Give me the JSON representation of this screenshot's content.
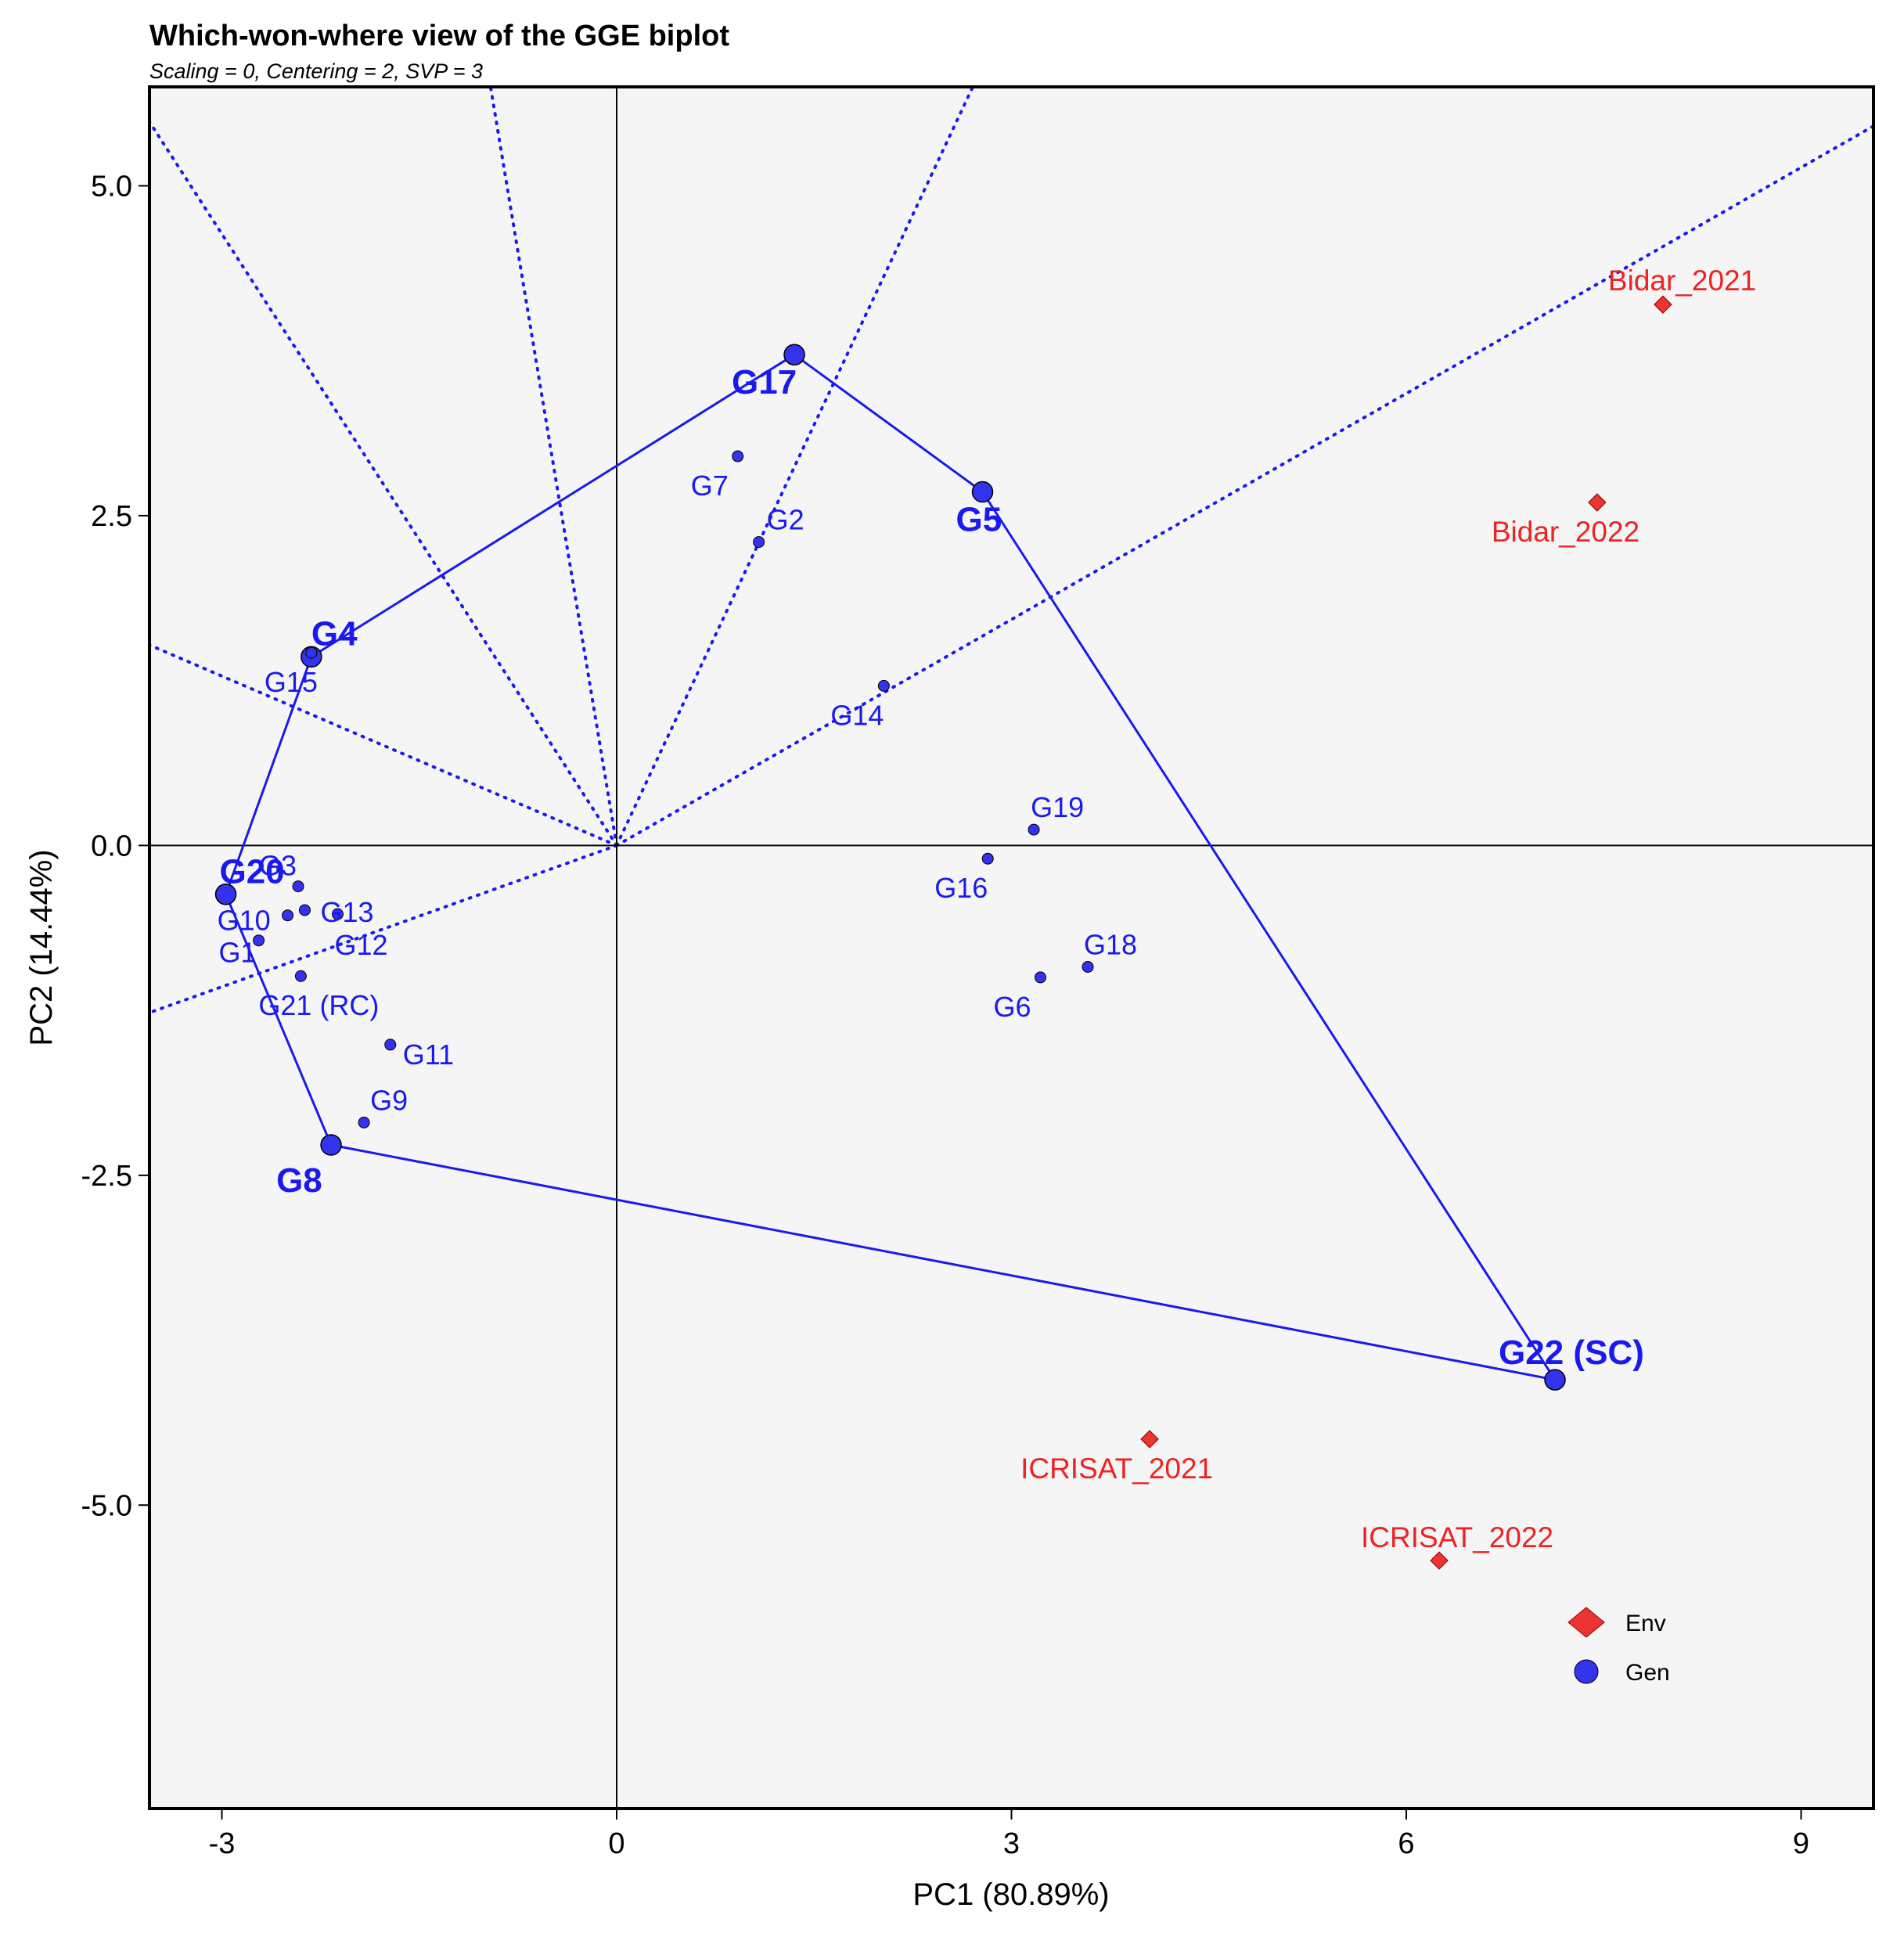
{
  "chart_data": {
    "type": "scatter",
    "title": "Which-won-where view of the GGE biplot",
    "subtitle": "Scaling = 0, Centering = 2, SVP = 3",
    "xlabel": "PC1 (80.89%)",
    "ylabel": "PC2 (14.44%)",
    "xlim": [
      -3.55,
      9.55
    ],
    "ylim": [
      -7.3,
      5.75
    ],
    "xticks": [
      -3,
      0,
      3,
      6,
      9
    ],
    "xtick_labels": [
      "-3",
      "0",
      "3",
      "6",
      "9"
    ],
    "yticks": [
      5.0,
      2.5,
      0.0,
      -2.5,
      -5.0
    ],
    "ytick_labels": [
      "5.0",
      "2.5",
      "0.0",
      "-2.5",
      "-5.0"
    ],
    "grid": false,
    "colors": {
      "gen": "#1a1aee",
      "env": "#ee2222",
      "panel": "#f5f5f5"
    },
    "genotypes": [
      {
        "name": "G1",
        "x": -2.72,
        "y": -0.72,
        "vertex": false
      },
      {
        "name": "G2",
        "x": 1.08,
        "y": 2.3,
        "vertex": false
      },
      {
        "name": "G4",
        "x": -2.32,
        "y": 1.43,
        "vertex": true
      },
      {
        "name": "G5",
        "x": 2.78,
        "y": 2.68,
        "vertex": true
      },
      {
        "name": "G6",
        "x": 3.22,
        "y": -1.0,
        "vertex": false
      },
      {
        "name": "G7",
        "x": 0.92,
        "y": 2.95,
        "vertex": false
      },
      {
        "name": "G8",
        "x": -2.17,
        "y": -2.27,
        "vertex": true
      },
      {
        "name": "G9",
        "x": -1.92,
        "y": -2.1,
        "vertex": false
      },
      {
        "name": "G10",
        "x": -2.5,
        "y": -0.53,
        "vertex": false
      },
      {
        "name": "G11",
        "x": -1.72,
        "y": -1.51,
        "vertex": false
      },
      {
        "name": "G12",
        "x": -2.12,
        "y": -0.52,
        "vertex": false
      },
      {
        "name": "G13",
        "x": -2.37,
        "y": -0.49,
        "vertex": false
      },
      {
        "name": "G14",
        "x": 2.03,
        "y": 1.21,
        "vertex": false
      },
      {
        "name": "G15",
        "x": -2.32,
        "y": 1.46,
        "vertex": false
      },
      {
        "name": "G16",
        "x": 2.82,
        "y": -0.1,
        "vertex": false
      },
      {
        "name": "G17",
        "x": 1.35,
        "y": 3.72,
        "vertex": true
      },
      {
        "name": "G18",
        "x": 3.58,
        "y": -0.92,
        "vertex": false
      },
      {
        "name": "G19",
        "x": 3.17,
        "y": 0.12,
        "vertex": false
      },
      {
        "name": "G20",
        "x": -2.97,
        "y": -0.37,
        "vertex": true
      },
      {
        "name": "G3",
        "x": -2.42,
        "y": -0.31,
        "vertex": false
      },
      {
        "name": "G21 (RC)",
        "x": -2.4,
        "y": -0.99,
        "vertex": false
      },
      {
        "name": "G22 (SC)",
        "x": 7.13,
        "y": -4.05,
        "vertex": true
      }
    ],
    "environments": [
      {
        "name": "Bidar_2021",
        "x": 7.95,
        "y": 4.1
      },
      {
        "name": "Bidar_2022",
        "x": 7.45,
        "y": 2.6
      },
      {
        "name": "ICRISAT_2021",
        "x": 4.05,
        "y": -4.5
      },
      {
        "name": "ICRISAT_2022",
        "x": 6.25,
        "y": -5.42
      }
    ],
    "hull_order": [
      "G17",
      "G5",
      "G22 (SC)",
      "G8",
      "G20",
      "G4"
    ],
    "sector_rays_slope": [
      -1.545,
      0.571,
      2.125,
      0.357,
      -6.0,
      -0.428
    ],
    "legend": {
      "position": "bottom-right",
      "entries": [
        "Env",
        "Gen"
      ]
    }
  }
}
